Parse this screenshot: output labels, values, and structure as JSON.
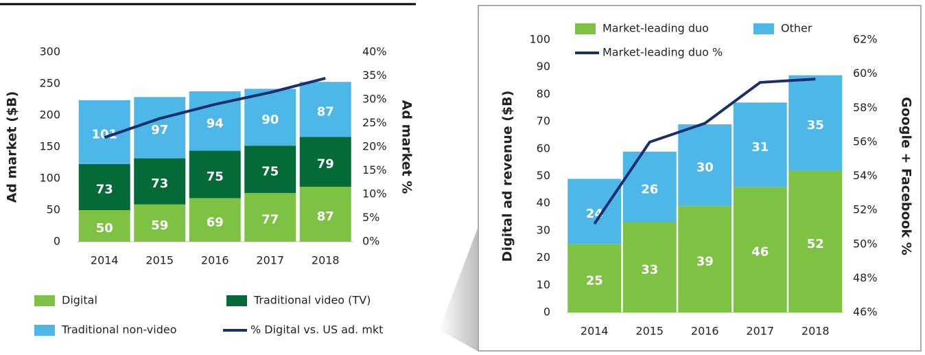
{
  "chart_data": [
    {
      "type": "bar",
      "stacked": true,
      "categories": [
        "2014",
        "2015",
        "2016",
        "2017",
        "2018"
      ],
      "ylabel": "Ad market ($B)",
      "y2label": "Ad market %",
      "ylim": [
        0,
        300
      ],
      "yticks": [
        0,
        50,
        100,
        150,
        200,
        250,
        300
      ],
      "y2lim": [
        0,
        40
      ],
      "y2ticks": [
        {
          "value": 0,
          "label": "0%"
        },
        {
          "value": 5,
          "label": "5%"
        },
        {
          "value": 10,
          "label": "10%"
        },
        {
          "value": 15,
          "label": "15%"
        },
        {
          "value": 20,
          "label": "20%"
        },
        {
          "value": 25,
          "label": "25%"
        },
        {
          "value": 30,
          "label": "30%"
        },
        {
          "value": 35,
          "label": "35%"
        },
        {
          "value": 40,
          "label": "40%"
        }
      ],
      "series": [
        {
          "name": "Digital",
          "color": "#7dc242",
          "values": [
            50,
            59,
            69,
            77,
            87
          ]
        },
        {
          "name": "Traditional video (TV)",
          "color": "#046a38",
          "values": [
            73,
            73,
            75,
            75,
            79
          ]
        },
        {
          "name": "Traditional non-video",
          "color": "#4db8e8",
          "values": [
            101,
            97,
            94,
            90,
            87
          ]
        },
        {
          "name": "% Digital vs. US ad. mkt",
          "color": "#1b2f6e",
          "axis": "y2",
          "values": [
            22,
            26,
            29,
            31.5,
            34.5
          ]
        }
      ]
    },
    {
      "type": "bar",
      "stacked": true,
      "categories": [
        "2014",
        "2015",
        "2016",
        "2017",
        "2018"
      ],
      "ylabel": "Digital ad revenue ($B)",
      "y2label": "Google + Facebook %",
      "ylim": [
        0,
        100
      ],
      "yticks": [
        0,
        10,
        20,
        30,
        40,
        50,
        60,
        70,
        80,
        90,
        100
      ],
      "y2lim": [
        46,
        62
      ],
      "y2ticks": [
        {
          "value": 46,
          "label": "46%"
        },
        {
          "value": 48,
          "label": "48%"
        },
        {
          "value": 50,
          "label": "50%"
        },
        {
          "value": 52,
          "label": "52%"
        },
        {
          "value": 54,
          "label": "54%"
        },
        {
          "value": 56,
          "label": "56%"
        },
        {
          "value": 58,
          "label": "58%"
        },
        {
          "value": 60,
          "label": "60%"
        },
        {
          "value": 62,
          "label": "62%"
        }
      ],
      "series": [
        {
          "name": "Market-leading duo",
          "color": "#7dc242",
          "values": [
            25,
            33,
            39,
            46,
            52
          ]
        },
        {
          "name": "Other",
          "color": "#4db8e8",
          "values": [
            24,
            26,
            30,
            31,
            35
          ]
        },
        {
          "name": "Market-leading duo %",
          "color": "#1b2f6e",
          "axis": "y2",
          "values": [
            51.2,
            56,
            57.1,
            59.5,
            59.7
          ]
        }
      ]
    }
  ]
}
